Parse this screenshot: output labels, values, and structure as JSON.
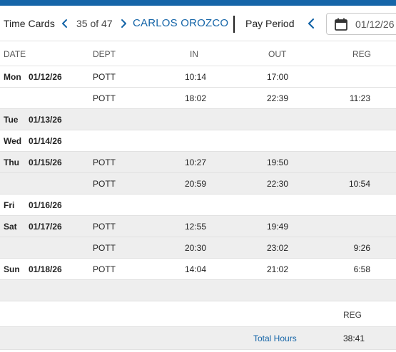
{
  "header": {
    "title": "Time Cards",
    "record_position": "35 of 47",
    "employee_name": "CARLOS OROZCO",
    "pay_period_label": "Pay Period",
    "pay_period_date": "01/12/26"
  },
  "columns": {
    "date": "DATE",
    "dept": "DEPT",
    "in": "IN",
    "out": "OUT",
    "reg": "REG"
  },
  "rows": [
    {
      "day": "Mon",
      "date": "01/12/26",
      "dept": "POTT",
      "in": "10:14",
      "out": "17:00",
      "reg": "",
      "shaded": false
    },
    {
      "day": "",
      "date": "",
      "dept": "POTT",
      "in": "18:02",
      "out": "22:39",
      "reg": "11:23",
      "shaded": false
    },
    {
      "day": "Tue",
      "date": "01/13/26",
      "dept": "",
      "in": "",
      "out": "",
      "reg": "",
      "shaded": true
    },
    {
      "day": "Wed",
      "date": "01/14/26",
      "dept": "",
      "in": "",
      "out": "",
      "reg": "",
      "shaded": false
    },
    {
      "day": "Thu",
      "date": "01/15/26",
      "dept": "POTT",
      "in": "10:27",
      "out": "19:50",
      "reg": "",
      "shaded": true
    },
    {
      "day": "",
      "date": "",
      "dept": "POTT",
      "in": "20:59",
      "out": "22:30",
      "reg": "10:54",
      "shaded": true
    },
    {
      "day": "Fri",
      "date": "01/16/26",
      "dept": "",
      "in": "",
      "out": "",
      "reg": "",
      "shaded": false
    },
    {
      "day": "Sat",
      "date": "01/17/26",
      "dept": "POTT",
      "in": "12:55",
      "out": "19:49",
      "reg": "",
      "shaded": true
    },
    {
      "day": "",
      "date": "",
      "dept": "POTT",
      "in": "20:30",
      "out": "23:02",
      "reg": "9:26",
      "shaded": true
    },
    {
      "day": "Sun",
      "date": "01/18/26",
      "dept": "POTT",
      "in": "14:04",
      "out": "21:02",
      "reg": "6:58",
      "shaded": false
    },
    {
      "day": "",
      "date": "",
      "dept": "",
      "in": "",
      "out": "",
      "reg": "",
      "shaded": true
    }
  ],
  "summary": {
    "reg_label": "REG",
    "total_label": "Total Hours",
    "total_reg": "38:41"
  },
  "colors": {
    "accent": "#1565a8",
    "row_shade": "#eeeeee"
  },
  "icons": {
    "prev": "chevron-left-icon",
    "next": "chevron-right-icon",
    "calendar": "calendar-icon"
  }
}
